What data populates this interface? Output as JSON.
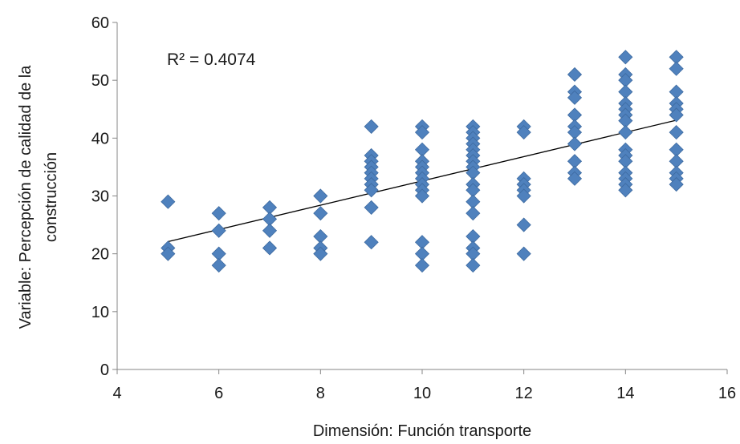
{
  "chart_data": {
    "type": "scatter",
    "title": "",
    "xlabel": "Dimensión: Función transporte",
    "ylabel_lines": [
      "Variable: Percepción de calidad de la",
      "construcción"
    ],
    "xlim": [
      4,
      16
    ],
    "ylim": [
      0,
      60
    ],
    "xticks": [
      "4",
      "6",
      "8",
      "10",
      "12",
      "14",
      "16"
    ],
    "yticks": [
      "0",
      "10",
      "20",
      "30",
      "40",
      "50",
      "60"
    ],
    "grid": false,
    "legend": "none",
    "marker_color": "#4f81bd",
    "trendline": {
      "x": [
        5,
        15
      ],
      "y": [
        22.1,
        43.1
      ],
      "color": "#000000"
    },
    "annotation": "R² = 0.4074",
    "points": [
      {
        "x": 5,
        "y": 29
      },
      {
        "x": 5,
        "y": 21
      },
      {
        "x": 5,
        "y": 20
      },
      {
        "x": 6,
        "y": 27
      },
      {
        "x": 6,
        "y": 24
      },
      {
        "x": 6,
        "y": 20
      },
      {
        "x": 6,
        "y": 18
      },
      {
        "x": 7,
        "y": 28
      },
      {
        "x": 7,
        "y": 26
      },
      {
        "x": 7,
        "y": 24
      },
      {
        "x": 7,
        "y": 21
      },
      {
        "x": 8,
        "y": 30
      },
      {
        "x": 8,
        "y": 27
      },
      {
        "x": 8,
        "y": 23
      },
      {
        "x": 8,
        "y": 21
      },
      {
        "x": 8,
        "y": 20
      },
      {
        "x": 9,
        "y": 42
      },
      {
        "x": 9,
        "y": 37
      },
      {
        "x": 9,
        "y": 36
      },
      {
        "x": 9,
        "y": 35
      },
      {
        "x": 9,
        "y": 34
      },
      {
        "x": 9,
        "y": 33
      },
      {
        "x": 9,
        "y": 32
      },
      {
        "x": 9,
        "y": 31
      },
      {
        "x": 9,
        "y": 28
      },
      {
        "x": 9,
        "y": 22
      },
      {
        "x": 10,
        "y": 42
      },
      {
        "x": 10,
        "y": 41
      },
      {
        "x": 10,
        "y": 38
      },
      {
        "x": 10,
        "y": 36
      },
      {
        "x": 10,
        "y": 35
      },
      {
        "x": 10,
        "y": 34
      },
      {
        "x": 10,
        "y": 33
      },
      {
        "x": 10,
        "y": 32
      },
      {
        "x": 10,
        "y": 31
      },
      {
        "x": 10,
        "y": 30
      },
      {
        "x": 10,
        "y": 22
      },
      {
        "x": 10,
        "y": 20
      },
      {
        "x": 10,
        "y": 18
      },
      {
        "x": 11,
        "y": 42
      },
      {
        "x": 11,
        "y": 41
      },
      {
        "x": 11,
        "y": 40
      },
      {
        "x": 11,
        "y": 39
      },
      {
        "x": 11,
        "y": 38
      },
      {
        "x": 11,
        "y": 37
      },
      {
        "x": 11,
        "y": 36
      },
      {
        "x": 11,
        "y": 35
      },
      {
        "x": 11,
        "y": 34
      },
      {
        "x": 11,
        "y": 32
      },
      {
        "x": 11,
        "y": 31
      },
      {
        "x": 11,
        "y": 29
      },
      {
        "x": 11,
        "y": 27
      },
      {
        "x": 11,
        "y": 23
      },
      {
        "x": 11,
        "y": 21
      },
      {
        "x": 11,
        "y": 20
      },
      {
        "x": 11,
        "y": 18
      },
      {
        "x": 12,
        "y": 42
      },
      {
        "x": 12,
        "y": 41
      },
      {
        "x": 12,
        "y": 33
      },
      {
        "x": 12,
        "y": 32
      },
      {
        "x": 12,
        "y": 31
      },
      {
        "x": 12,
        "y": 30
      },
      {
        "x": 12,
        "y": 25
      },
      {
        "x": 12,
        "y": 20
      },
      {
        "x": 13,
        "y": 51
      },
      {
        "x": 13,
        "y": 48
      },
      {
        "x": 13,
        "y": 47
      },
      {
        "x": 13,
        "y": 44
      },
      {
        "x": 13,
        "y": 42
      },
      {
        "x": 13,
        "y": 41
      },
      {
        "x": 13,
        "y": 39
      },
      {
        "x": 13,
        "y": 36
      },
      {
        "x": 13,
        "y": 34
      },
      {
        "x": 13,
        "y": 33
      },
      {
        "x": 14,
        "y": 54
      },
      {
        "x": 14,
        "y": 51
      },
      {
        "x": 14,
        "y": 50
      },
      {
        "x": 14,
        "y": 48
      },
      {
        "x": 14,
        "y": 46
      },
      {
        "x": 14,
        "y": 45
      },
      {
        "x": 14,
        "y": 44
      },
      {
        "x": 14,
        "y": 43
      },
      {
        "x": 14,
        "y": 41
      },
      {
        "x": 14,
        "y": 38
      },
      {
        "x": 14,
        "y": 37
      },
      {
        "x": 14,
        "y": 36
      },
      {
        "x": 14,
        "y": 34
      },
      {
        "x": 14,
        "y": 33
      },
      {
        "x": 14,
        "y": 32
      },
      {
        "x": 14,
        "y": 31
      },
      {
        "x": 15,
        "y": 54
      },
      {
        "x": 15,
        "y": 52
      },
      {
        "x": 15,
        "y": 48
      },
      {
        "x": 15,
        "y": 46
      },
      {
        "x": 15,
        "y": 45
      },
      {
        "x": 15,
        "y": 44
      },
      {
        "x": 15,
        "y": 41
      },
      {
        "x": 15,
        "y": 38
      },
      {
        "x": 15,
        "y": 36
      },
      {
        "x": 15,
        "y": 34
      },
      {
        "x": 15,
        "y": 33
      },
      {
        "x": 15,
        "y": 32
      }
    ]
  }
}
